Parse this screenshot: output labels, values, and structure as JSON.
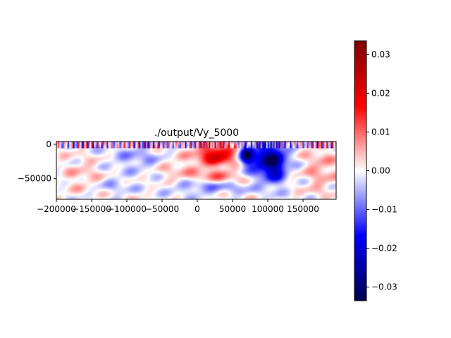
{
  "chart_data": {
    "type": "heatmap",
    "title": "./output/Vy_5000",
    "xlabel": "",
    "ylabel": "",
    "xlim": [
      -200000,
      197000
    ],
    "ylim": [
      -80000,
      4000
    ],
    "x_ticks": [
      -200000,
      -150000,
      -100000,
      -50000,
      0,
      50000,
      100000,
      150000
    ],
    "x_tick_labels": [
      "−200000",
      "−150000",
      "−100000",
      "−50000",
      "0",
      "50000",
      "100000",
      "150000"
    ],
    "y_ticks": [
      0,
      -50000
    ],
    "y_tick_labels": [
      "0",
      "−50000"
    ],
    "colormap": "seismic",
    "colorbar": {
      "vmin": -0.0335,
      "vmax": 0.0335,
      "ticks": [
        0.03,
        0.02,
        0.01,
        0.0,
        -0.01,
        -0.02,
        -0.03
      ],
      "tick_labels": [
        "0.03",
        "0.02",
        "0.01",
        "0.00",
        "−0.01",
        "−0.02",
        "−0.03"
      ]
    },
    "field_features": [
      {
        "kind": "blob",
        "x": 28000,
        "y": -15000,
        "rx": 27000,
        "ry": 16000,
        "value": 0.022
      },
      {
        "kind": "blob",
        "x": 95000,
        "y": -22000,
        "rx": 28000,
        "ry": 26000,
        "value": -0.02
      },
      {
        "kind": "blob",
        "x": 70000,
        "y": -15000,
        "rx": 9000,
        "ry": 13000,
        "value": -0.024
      },
      {
        "kind": "blob",
        "x": 110000,
        "y": -30000,
        "rx": 15000,
        "ry": 28000,
        "value": -0.016
      },
      {
        "kind": "blob",
        "x": 30000,
        "y": -48000,
        "rx": 40000,
        "ry": 12000,
        "value": 0.008
      },
      {
        "kind": "blob",
        "x": 15000,
        "y": -62000,
        "rx": 55000,
        "ry": 10000,
        "value": -0.009
      },
      {
        "kind": "blob",
        "x": -85000,
        "y": -20000,
        "rx": 42000,
        "ry": 20000,
        "value": -0.006
      },
      {
        "kind": "blob",
        "x": -160000,
        "y": -45000,
        "rx": 30000,
        "ry": 25000,
        "value": 0.004
      },
      {
        "kind": "blob",
        "x": 175000,
        "y": -35000,
        "rx": 22000,
        "ry": 35000,
        "value": 0.006
      },
      {
        "kind": "blob",
        "x": -30000,
        "y": -35000,
        "rx": 30000,
        "ry": 22000,
        "value": 0.004
      },
      {
        "kind": "blob",
        "x": -120000,
        "y": -60000,
        "rx": 30000,
        "ry": 14000,
        "value": -0.004
      }
    ]
  }
}
